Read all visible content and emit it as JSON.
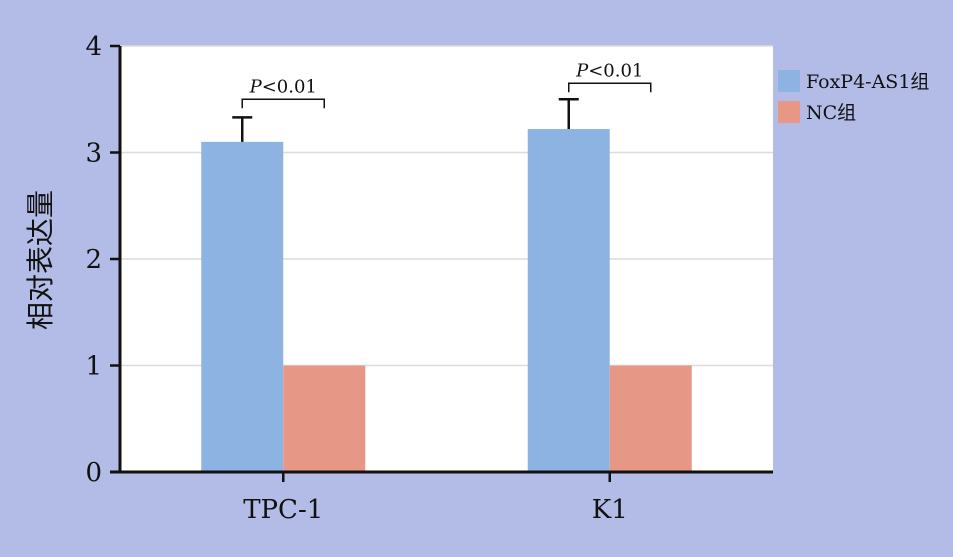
{
  "chart_data": {
    "type": "bar",
    "title": "",
    "xlabel": "",
    "ylabel": "相对表达量",
    "ylim": [
      0,
      4
    ],
    "yticks": [
      "0",
      "1",
      "2",
      "3",
      "4"
    ],
    "grid": true,
    "legend_position": "right",
    "categories": [
      "TPC-1",
      "K1"
    ],
    "series": [
      {
        "name": "FoxP4-AS1组",
        "color": "#8db3e2",
        "values": [
          3.1,
          3.22
        ],
        "errors": [
          0.23,
          0.28
        ]
      },
      {
        "name": "NC组",
        "color": "#e69786",
        "values": [
          1.0,
          1.0
        ],
        "errors": [
          0,
          0
        ]
      }
    ],
    "annotations": [
      {
        "category": "TPC-1",
        "p_symbol": "P",
        "p_rest": "<0.01",
        "y": 3.5
      },
      {
        "category": "K1",
        "p_symbol": "P",
        "p_rest": "<0.01",
        "y": 3.65
      }
    ]
  },
  "colors": {
    "background": "#b3bce6",
    "plot_area": "#ffffff",
    "grid": "#dcdcdc",
    "axis": "#111111"
  }
}
